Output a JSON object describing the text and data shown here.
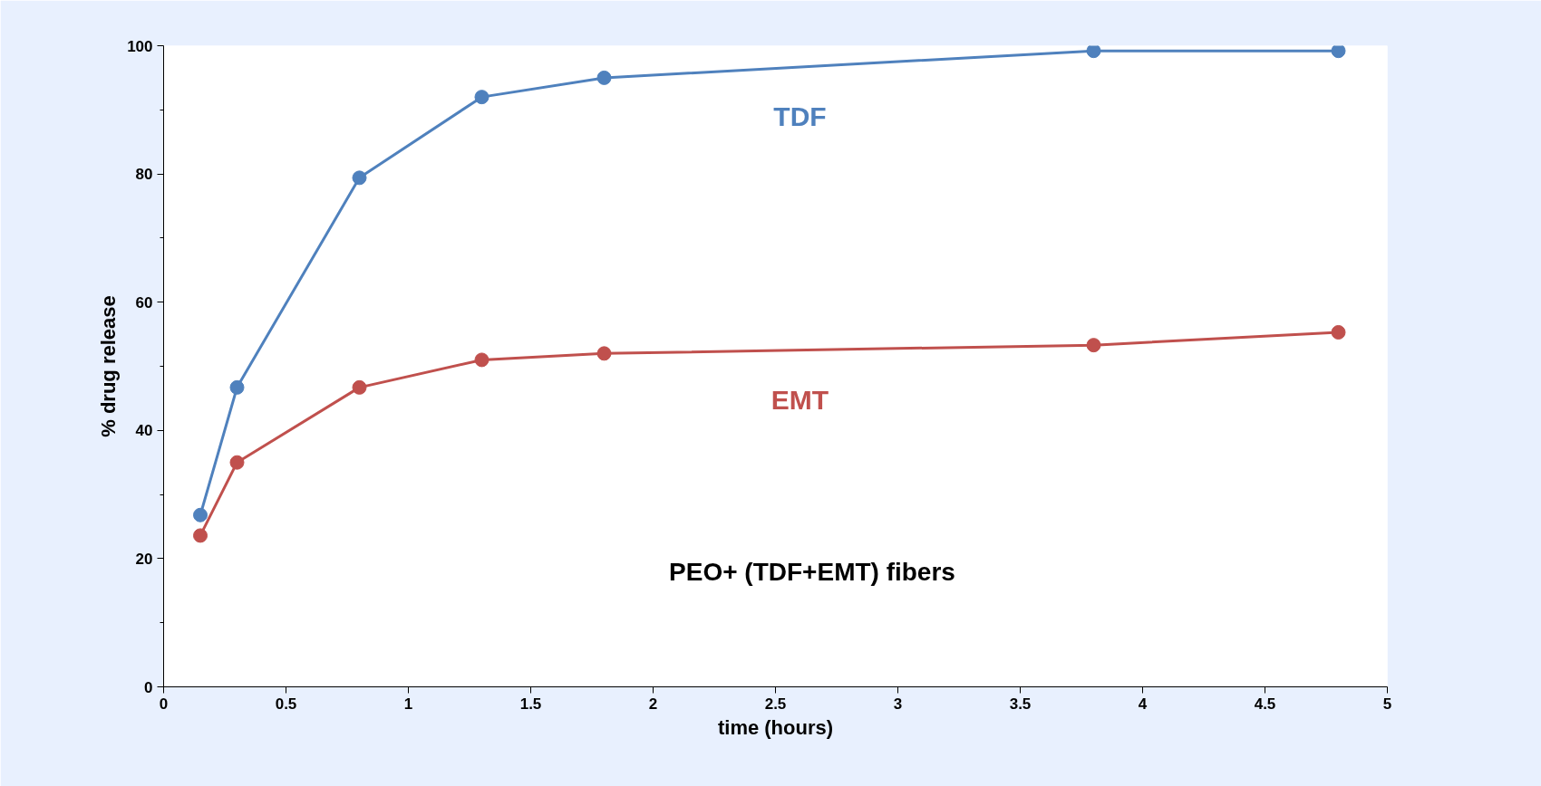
{
  "chart_data": {
    "type": "line",
    "xlabel": "time (hours)",
    "ylabel": "% drug release",
    "annotations": [
      "PEO+ (TDF+EMT) fibers"
    ],
    "x": [
      0.15,
      0.3,
      0.8,
      1.3,
      1.8,
      3.8,
      4.8
    ],
    "series": [
      {
        "name": "TDF",
        "color": "#4f81bd",
        "values": [
          26.8,
          46.7,
          79.4,
          92,
          95,
          99.2,
          99.2
        ]
      },
      {
        "name": "EMT",
        "color": "#c0504d",
        "values": [
          23.6,
          35,
          46.7,
          51,
          52,
          53.3,
          55.3
        ]
      }
    ],
    "xlim": [
      0,
      5
    ],
    "xticks": [
      0,
      0.5,
      1,
      1.5,
      2,
      2.5,
      3,
      3.5,
      4,
      4.5,
      5
    ],
    "ylim": [
      0,
      100
    ],
    "yticks": [
      0,
      20,
      40,
      60,
      80,
      100
    ],
    "grid": false,
    "marker": "circle",
    "line_style": "solid"
  }
}
